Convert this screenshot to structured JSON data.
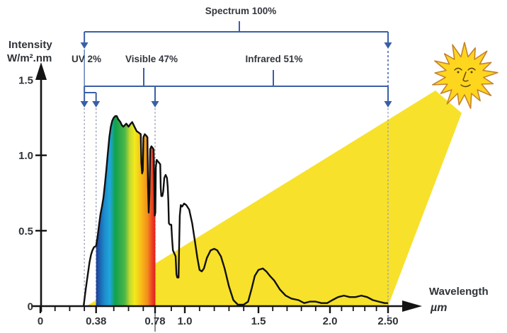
{
  "figure": {
    "annotations": {
      "spectrum_label": "Spectrum 100%",
      "uv_label": "UV 2%",
      "visible_label": "Visible 47%",
      "infrared_label": "Infrared 51%"
    },
    "y_axis": {
      "title_line1": "Intensity",
      "title_line2": "W/m².nm",
      "ticks": [
        {
          "label": "1.5",
          "value": 1.5,
          "tick": false
        },
        {
          "label": "1.0",
          "value": 1.0,
          "tick": true
        },
        {
          "label": "0.5",
          "value": 0.5,
          "tick": true
        },
        {
          "label": "0",
          "value": 0.0,
          "tick": false
        }
      ]
    },
    "x_axis": {
      "title_line1": "Wavelength",
      "title_line2": "µm",
      "ticks": [
        {
          "label": "0",
          "value": 0
        },
        {
          "label": "0.38",
          "value": 0.38
        },
        {
          "label": "0.78",
          "value": 0.78
        },
        {
          "label": "1.0",
          "value": 1.0
        },
        {
          "label": "1.5",
          "value": 1.5
        },
        {
          "label": "2.0",
          "value": 2.0
        },
        {
          "label": "2.50",
          "value": 2.5
        }
      ],
      "minor_ticks": [
        0.1,
        0.2,
        0.3,
        0.5,
        0.6,
        0.7,
        0.9,
        1.1,
        1.2,
        1.3,
        1.4,
        1.6,
        1.7,
        1.8,
        1.9,
        2.1,
        2.2,
        2.3,
        2.4
      ]
    }
  },
  "chart_data": {
    "type": "area",
    "xlabel": "Wavelength (µm)",
    "ylabel": "Intensity W/m².nm",
    "xlim": [
      0,
      2.6
    ],
    "ylim": [
      0,
      1.5
    ],
    "legend": "none",
    "grid": false,
    "bands": {
      "spectrum": {
        "label": "Spectrum 100%",
        "share_percent": 100,
        "range_um": [
          0.3,
          2.5
        ]
      },
      "uv": {
        "label": "UV 2%",
        "share_percent": 2,
        "range_um": [
          0.3,
          0.38
        ]
      },
      "visible": {
        "label": "Visible 47%",
        "share_percent": 47,
        "range_um": [
          0.38,
          0.78
        ]
      },
      "infrared": {
        "label": "Infrared 51%",
        "share_percent": 51,
        "range_um": [
          0.78,
          2.5
        ]
      }
    },
    "curve": [
      [
        0.295,
        0.0
      ],
      [
        0.305,
        0.08
      ],
      [
        0.315,
        0.15
      ],
      [
        0.325,
        0.22
      ],
      [
        0.335,
        0.29
      ],
      [
        0.345,
        0.34
      ],
      [
        0.355,
        0.37
      ],
      [
        0.365,
        0.39
      ],
      [
        0.38,
        0.4
      ],
      [
        0.39,
        0.46
      ],
      [
        0.4,
        0.54
      ],
      [
        0.41,
        0.61
      ],
      [
        0.42,
        0.66
      ],
      [
        0.43,
        0.72
      ],
      [
        0.44,
        0.81
      ],
      [
        0.45,
        0.91
      ],
      [
        0.46,
        1.02
      ],
      [
        0.47,
        1.12
      ],
      [
        0.48,
        1.19
      ],
      [
        0.49,
        1.23
      ],
      [
        0.5,
        1.25
      ],
      [
        0.51,
        1.26
      ],
      [
        0.52,
        1.26
      ],
      [
        0.53,
        1.24
      ],
      [
        0.545,
        1.22
      ],
      [
        0.555,
        1.2
      ],
      [
        0.565,
        1.19
      ],
      [
        0.575,
        1.2
      ],
      [
        0.585,
        1.21
      ],
      [
        0.6,
        1.19
      ],
      [
        0.615,
        1.21
      ],
      [
        0.625,
        1.22
      ],
      [
        0.635,
        1.2
      ],
      [
        0.645,
        1.18
      ],
      [
        0.655,
        1.16
      ],
      [
        0.67,
        1.15
      ],
      [
        0.683,
        1.14
      ],
      [
        0.687,
        0.95
      ],
      [
        0.692,
        0.88
      ],
      [
        0.697,
        0.9
      ],
      [
        0.701,
        1.12
      ],
      [
        0.71,
        1.14
      ],
      [
        0.72,
        1.13
      ],
      [
        0.728,
        1.12
      ],
      [
        0.732,
        0.8
      ],
      [
        0.737,
        0.62
      ],
      [
        0.742,
        0.75
      ],
      [
        0.747,
        1.04
      ],
      [
        0.755,
        1.06
      ],
      [
        0.763,
        1.05
      ],
      [
        0.77,
        1.04
      ],
      [
        0.774,
        0.85
      ],
      [
        0.778,
        0.6
      ],
      [
        0.782,
        0.62
      ],
      [
        0.786,
        0.92
      ],
      [
        0.792,
        0.97
      ],
      [
        0.8,
        0.96
      ],
      [
        0.81,
        0.95
      ],
      [
        0.818,
        0.94
      ],
      [
        0.822,
        0.78
      ],
      [
        0.826,
        0.73
      ],
      [
        0.834,
        0.73
      ],
      [
        0.84,
        0.76
      ],
      [
        0.848,
        0.85
      ],
      [
        0.858,
        0.87
      ],
      [
        0.868,
        0.85
      ],
      [
        0.874,
        0.79
      ],
      [
        0.878,
        0.7
      ],
      [
        0.882,
        0.55
      ],
      [
        0.89,
        0.54
      ],
      [
        0.9,
        0.54
      ],
      [
        0.906,
        0.44
      ],
      [
        0.912,
        0.37
      ],
      [
        0.922,
        0.35
      ],
      [
        0.932,
        0.33
      ],
      [
        0.938,
        0.21
      ],
      [
        0.944,
        0.19
      ],
      [
        0.954,
        0.19
      ],
      [
        0.958,
        0.4
      ],
      [
        0.963,
        0.6
      ],
      [
        0.97,
        0.67
      ],
      [
        0.98,
        0.66
      ],
      [
        0.995,
        0.68
      ],
      [
        1.01,
        0.67
      ],
      [
        1.03,
        0.64
      ],
      [
        1.05,
        0.55
      ],
      [
        1.07,
        0.42
      ],
      [
        1.085,
        0.32
      ],
      [
        1.1,
        0.24
      ],
      [
        1.115,
        0.23
      ],
      [
        1.13,
        0.25
      ],
      [
        1.15,
        0.32
      ],
      [
        1.175,
        0.37
      ],
      [
        1.2,
        0.38
      ],
      [
        1.22,
        0.37
      ],
      [
        1.245,
        0.33
      ],
      [
        1.27,
        0.25
      ],
      [
        1.3,
        0.13
      ],
      [
        1.33,
        0.04
      ],
      [
        1.36,
        0.01
      ],
      [
        1.4,
        0.01
      ],
      [
        1.43,
        0.03
      ],
      [
        1.455,
        0.12
      ],
      [
        1.475,
        0.2
      ],
      [
        1.5,
        0.24
      ],
      [
        1.53,
        0.25
      ],
      [
        1.555,
        0.23
      ],
      [
        1.58,
        0.2
      ],
      [
        1.61,
        0.17
      ],
      [
        1.65,
        0.11
      ],
      [
        1.69,
        0.07
      ],
      [
        1.73,
        0.05
      ],
      [
        1.78,
        0.04
      ],
      [
        1.82,
        0.02
      ],
      [
        1.86,
        0.03
      ],
      [
        1.9,
        0.03
      ],
      [
        1.94,
        0.02
      ],
      [
        1.98,
        0.02
      ],
      [
        2.02,
        0.04
      ],
      [
        2.07,
        0.06
      ],
      [
        2.12,
        0.07
      ],
      [
        2.17,
        0.06
      ],
      [
        2.22,
        0.06
      ],
      [
        2.27,
        0.07
      ],
      [
        2.32,
        0.06
      ],
      [
        2.37,
        0.04
      ],
      [
        2.42,
        0.03
      ],
      [
        2.47,
        0.02
      ],
      [
        2.5,
        0.02
      ]
    ]
  },
  "colors": {
    "beam_yellow": "#F7E12B",
    "sun_fill": "#FFD61E",
    "sun_outline": "#C5822F",
    "sun_face": "#5A4210",
    "bracket_blue": "#3A5FA8",
    "dashed_gray": "#99A1B3",
    "axis_black": "#141414",
    "curve_black": "#101010",
    "text_dark": "#2F3338",
    "spectrum_gradient": [
      [
        "0%",
        "#1F2F87"
      ],
      [
        "8%",
        "#1C5FB0"
      ],
      [
        "16%",
        "#1E8AC9"
      ],
      [
        "25%",
        "#1FA7DF"
      ],
      [
        "34%",
        "#12A14B"
      ],
      [
        "50%",
        "#4EB748"
      ],
      [
        "58%",
        "#C5D92D"
      ],
      [
        "66%",
        "#F2EA1E"
      ],
      [
        "78%",
        "#F7B617"
      ],
      [
        "87%",
        "#F28E1C"
      ],
      [
        "94%",
        "#EC4723"
      ],
      [
        "100%",
        "#E31B20"
      ]
    ]
  }
}
